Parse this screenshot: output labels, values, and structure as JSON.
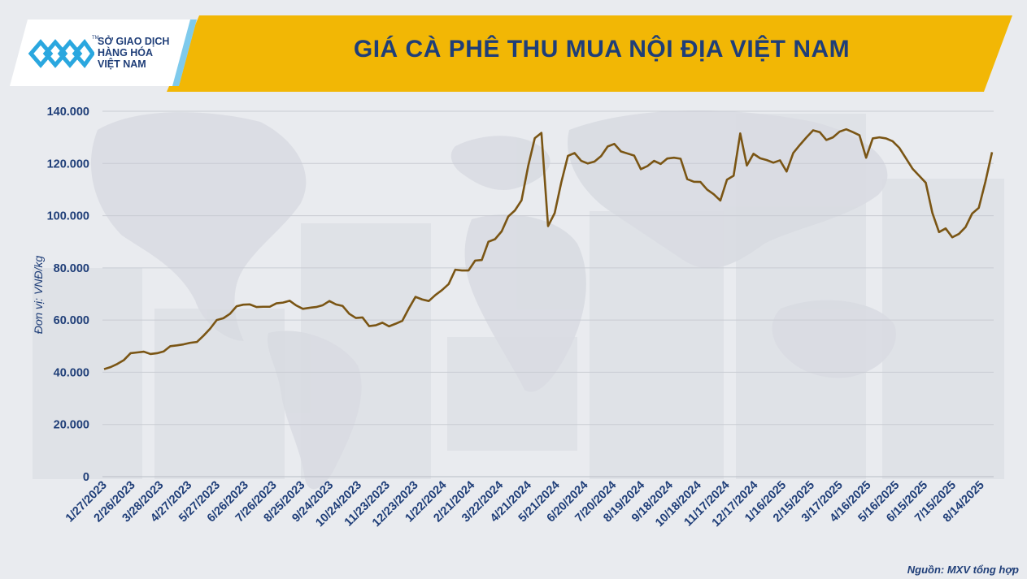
{
  "header": {
    "title": "GIÁ CÀ PHÊ THU MUA NỘI ĐỊA VIỆT NAM",
    "logo_line1": "SỞ GIAO DỊCH",
    "logo_line2": "HÀNG HÓA",
    "logo_line3": "VIỆT NAM",
    "logo_tm": "TM"
  },
  "footer": {
    "source": "Nguồn: MXV tổng hợp"
  },
  "colors": {
    "line": "#7a5514",
    "title_bar": "#f2b705",
    "text": "#1f3e78",
    "logo_accent": "#2aa7df"
  },
  "chart_data": {
    "type": "line",
    "title": "GIÁ CÀ PHÊ THU MUA NỘI ĐỊA VIỆT NAM",
    "ylabel": "Đơn vị: VNĐ/kg",
    "xlabel": "",
    "ylim": [
      0,
      140000
    ],
    "y_ticks": [
      0,
      20000,
      40000,
      60000,
      80000,
      100000,
      120000,
      140000
    ],
    "y_tick_labels": [
      "0",
      "20.000",
      "40.000",
      "60.000",
      "80.000",
      "100.000",
      "120.000",
      "140.000"
    ],
    "x_tick_labels": [
      "1/27/2023",
      "2/26/2023",
      "3/28/2023",
      "4/27/2023",
      "5/27/2023",
      "6/26/2023",
      "7/26/2023",
      "8/25/2023",
      "9/24/2023",
      "10/24/2023",
      "11/23/2023",
      "12/23/2023",
      "1/22/2024",
      "2/21/2024",
      "3/22/2024",
      "4/21/2024",
      "5/21/2024",
      "6/20/2024",
      "7/20/2024",
      "8/19/2024",
      "9/18/2024",
      "10/18/2024",
      "11/17/2024",
      "12/17/2024",
      "1/16/2025",
      "2/15/2025",
      "3/17/2025",
      "4/16/2025",
      "5/16/2025",
      "6/15/2025",
      "7/15/2025",
      "8/14/2025"
    ],
    "grid": true,
    "legend": "none",
    "series": [
      {
        "values": [
          41200,
          42000,
          43200,
          44700,
          47300,
          47600,
          47900,
          47000,
          47300,
          48000,
          50000,
          50300,
          50700,
          51300,
          51600,
          54000,
          56700,
          60000,
          60700,
          62400,
          65300,
          65900,
          66000,
          65000,
          65100,
          65100,
          66400,
          66700,
          67400,
          65600,
          64300,
          64700,
          65000,
          65700,
          67300,
          66000,
          65400,
          62400,
          60800,
          61000,
          57700,
          58000,
          59000,
          57600,
          58600,
          59700,
          64500,
          68900,
          67900,
          67300,
          69600,
          71500,
          73800,
          79300,
          79000,
          79000,
          82800,
          83000,
          90000,
          91000,
          94000,
          99700,
          102000,
          105900,
          119000,
          129700,
          131700,
          96000,
          101000,
          112800,
          122900,
          124000,
          121000,
          120000,
          120700,
          122800,
          126500,
          127500,
          124600,
          123800,
          123000,
          117800,
          119000,
          121000,
          119800,
          121900,
          122200,
          121800,
          114000,
          113000,
          112900,
          110000,
          108200,
          105800,
          113800,
          115300,
          131500,
          119200,
          123700,
          122000,
          121300,
          120300,
          121200,
          116900,
          124000,
          127100,
          130000,
          132700,
          132000,
          129000,
          130000,
          132200,
          133100,
          132000,
          130800,
          122200,
          129600,
          130000,
          129600,
          128500,
          126000,
          122000,
          118000,
          115300,
          112600,
          101000,
          93700,
          95100,
          91700,
          93000,
          95600,
          100800,
          103000,
          113000,
          124300
        ]
      }
    ]
  }
}
